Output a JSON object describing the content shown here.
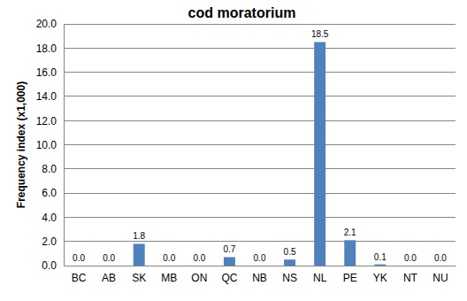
{
  "chart_data": {
    "type": "bar",
    "title": "cod moratorium",
    "y_label": "Frequency index (x1,000)",
    "categories": [
      "BC",
      "AB",
      "SK",
      "MB",
      "ON",
      "QC",
      "NB",
      "NS",
      "NL",
      "PE",
      "YK",
      "NT",
      "NU"
    ],
    "values": [
      0,
      0,
      1.8,
      0,
      0,
      0.7,
      0,
      0.5,
      18.5,
      2.1,
      0.1,
      0,
      0
    ],
    "value_labels": [
      "0.0",
      "0.0",
      "1.8",
      "0.0",
      "0.0",
      "0.7",
      "0.0",
      "0.5",
      "18.5",
      "2.1",
      "0.1",
      "0.0",
      "0.0"
    ],
    "color": "#4f81bd",
    "ylim": [
      0,
      20
    ],
    "yticks": [
      {
        "value": 0,
        "label": "0.0"
      },
      {
        "value": 2,
        "label": "2.0"
      },
      {
        "value": 4,
        "label": "4.0"
      },
      {
        "value": 6,
        "label": "6.0"
      },
      {
        "value": 8,
        "label": "8.0"
      },
      {
        "value": 10,
        "label": "10.0"
      },
      {
        "value": 12,
        "label": "12.0"
      },
      {
        "value": 14,
        "label": "14.0"
      },
      {
        "value": 16,
        "label": "16.0"
      },
      {
        "value": 18,
        "label": "18.0"
      },
      {
        "value": 20,
        "label": "20.0"
      }
    ],
    "grid": true,
    "data_labels": true
  }
}
